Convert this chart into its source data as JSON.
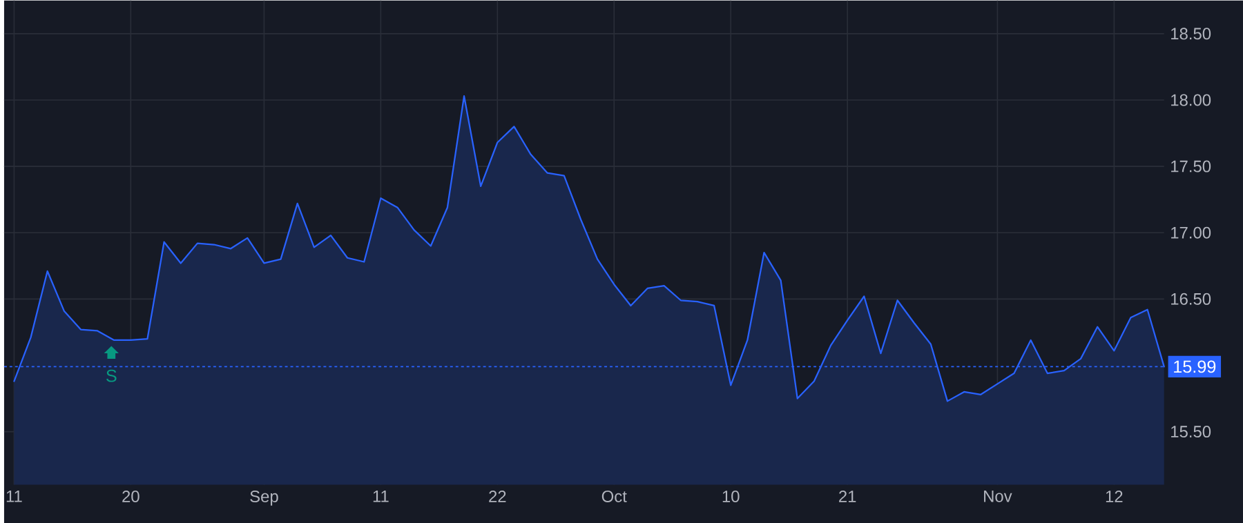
{
  "chart_data": {
    "type": "area",
    "categories": [
      "11",
      null,
      null,
      null,
      null,
      null,
      null,
      "20",
      null,
      null,
      null,
      null,
      null,
      null,
      null,
      "Sep",
      null,
      null,
      null,
      null,
      null,
      null,
      "11",
      null,
      null,
      null,
      null,
      null,
      null,
      "22",
      null,
      null,
      null,
      null,
      null,
      null,
      "Oct",
      null,
      null,
      null,
      null,
      null,
      null,
      "10",
      null,
      null,
      null,
      null,
      null,
      null,
      "21",
      null,
      null,
      null,
      null,
      null,
      null,
      null,
      null,
      "Nov",
      null,
      null,
      null,
      null,
      null,
      null,
      "12",
      null,
      null,
      null
    ],
    "series": [
      {
        "color": "#2962ff",
        "values": [
          15.88,
          16.21,
          16.71,
          16.41,
          16.27,
          16.26,
          16.19,
          16.19,
          16.2,
          16.93,
          16.77,
          16.92,
          16.91,
          16.88,
          16.96,
          16.77,
          16.8,
          17.22,
          16.89,
          16.98,
          16.81,
          16.78,
          17.26,
          17.19,
          17.02,
          16.9,
          17.19,
          18.03,
          17.35,
          17.68,
          17.8,
          17.59,
          17.45,
          17.43,
          17.1,
          16.8,
          16.61,
          16.45,
          16.58,
          16.6,
          16.49,
          16.48,
          16.45,
          15.85,
          16.19,
          16.85,
          16.64,
          15.75,
          15.88,
          16.15,
          16.34,
          16.52,
          16.09,
          16.49,
          16.32,
          16.16,
          15.73,
          15.8,
          15.78,
          15.86,
          15.94,
          16.19,
          15.94,
          15.96,
          16.05,
          16.29,
          16.11,
          16.36,
          16.42,
          15.99
        ]
      }
    ],
    "ylim": [
      15.1,
      18.75
    ],
    "yticks": [
      {
        "value": 15.5,
        "label": "15.50"
      },
      {
        "value": 16.5,
        "label": "16.50"
      },
      {
        "value": 17.0,
        "label": "17.00"
      },
      {
        "value": 17.5,
        "label": "17.50"
      },
      {
        "value": 18.0,
        "label": "18.00"
      },
      {
        "value": 18.5,
        "label": "18.50"
      }
    ],
    "grid": true,
    "ref_lines": [
      {
        "axis": "y",
        "value": 15.99,
        "label": "15.99",
        "color": "#2962ff",
        "line_style": "dotted"
      }
    ],
    "annotations": [
      "S"
    ]
  }
}
